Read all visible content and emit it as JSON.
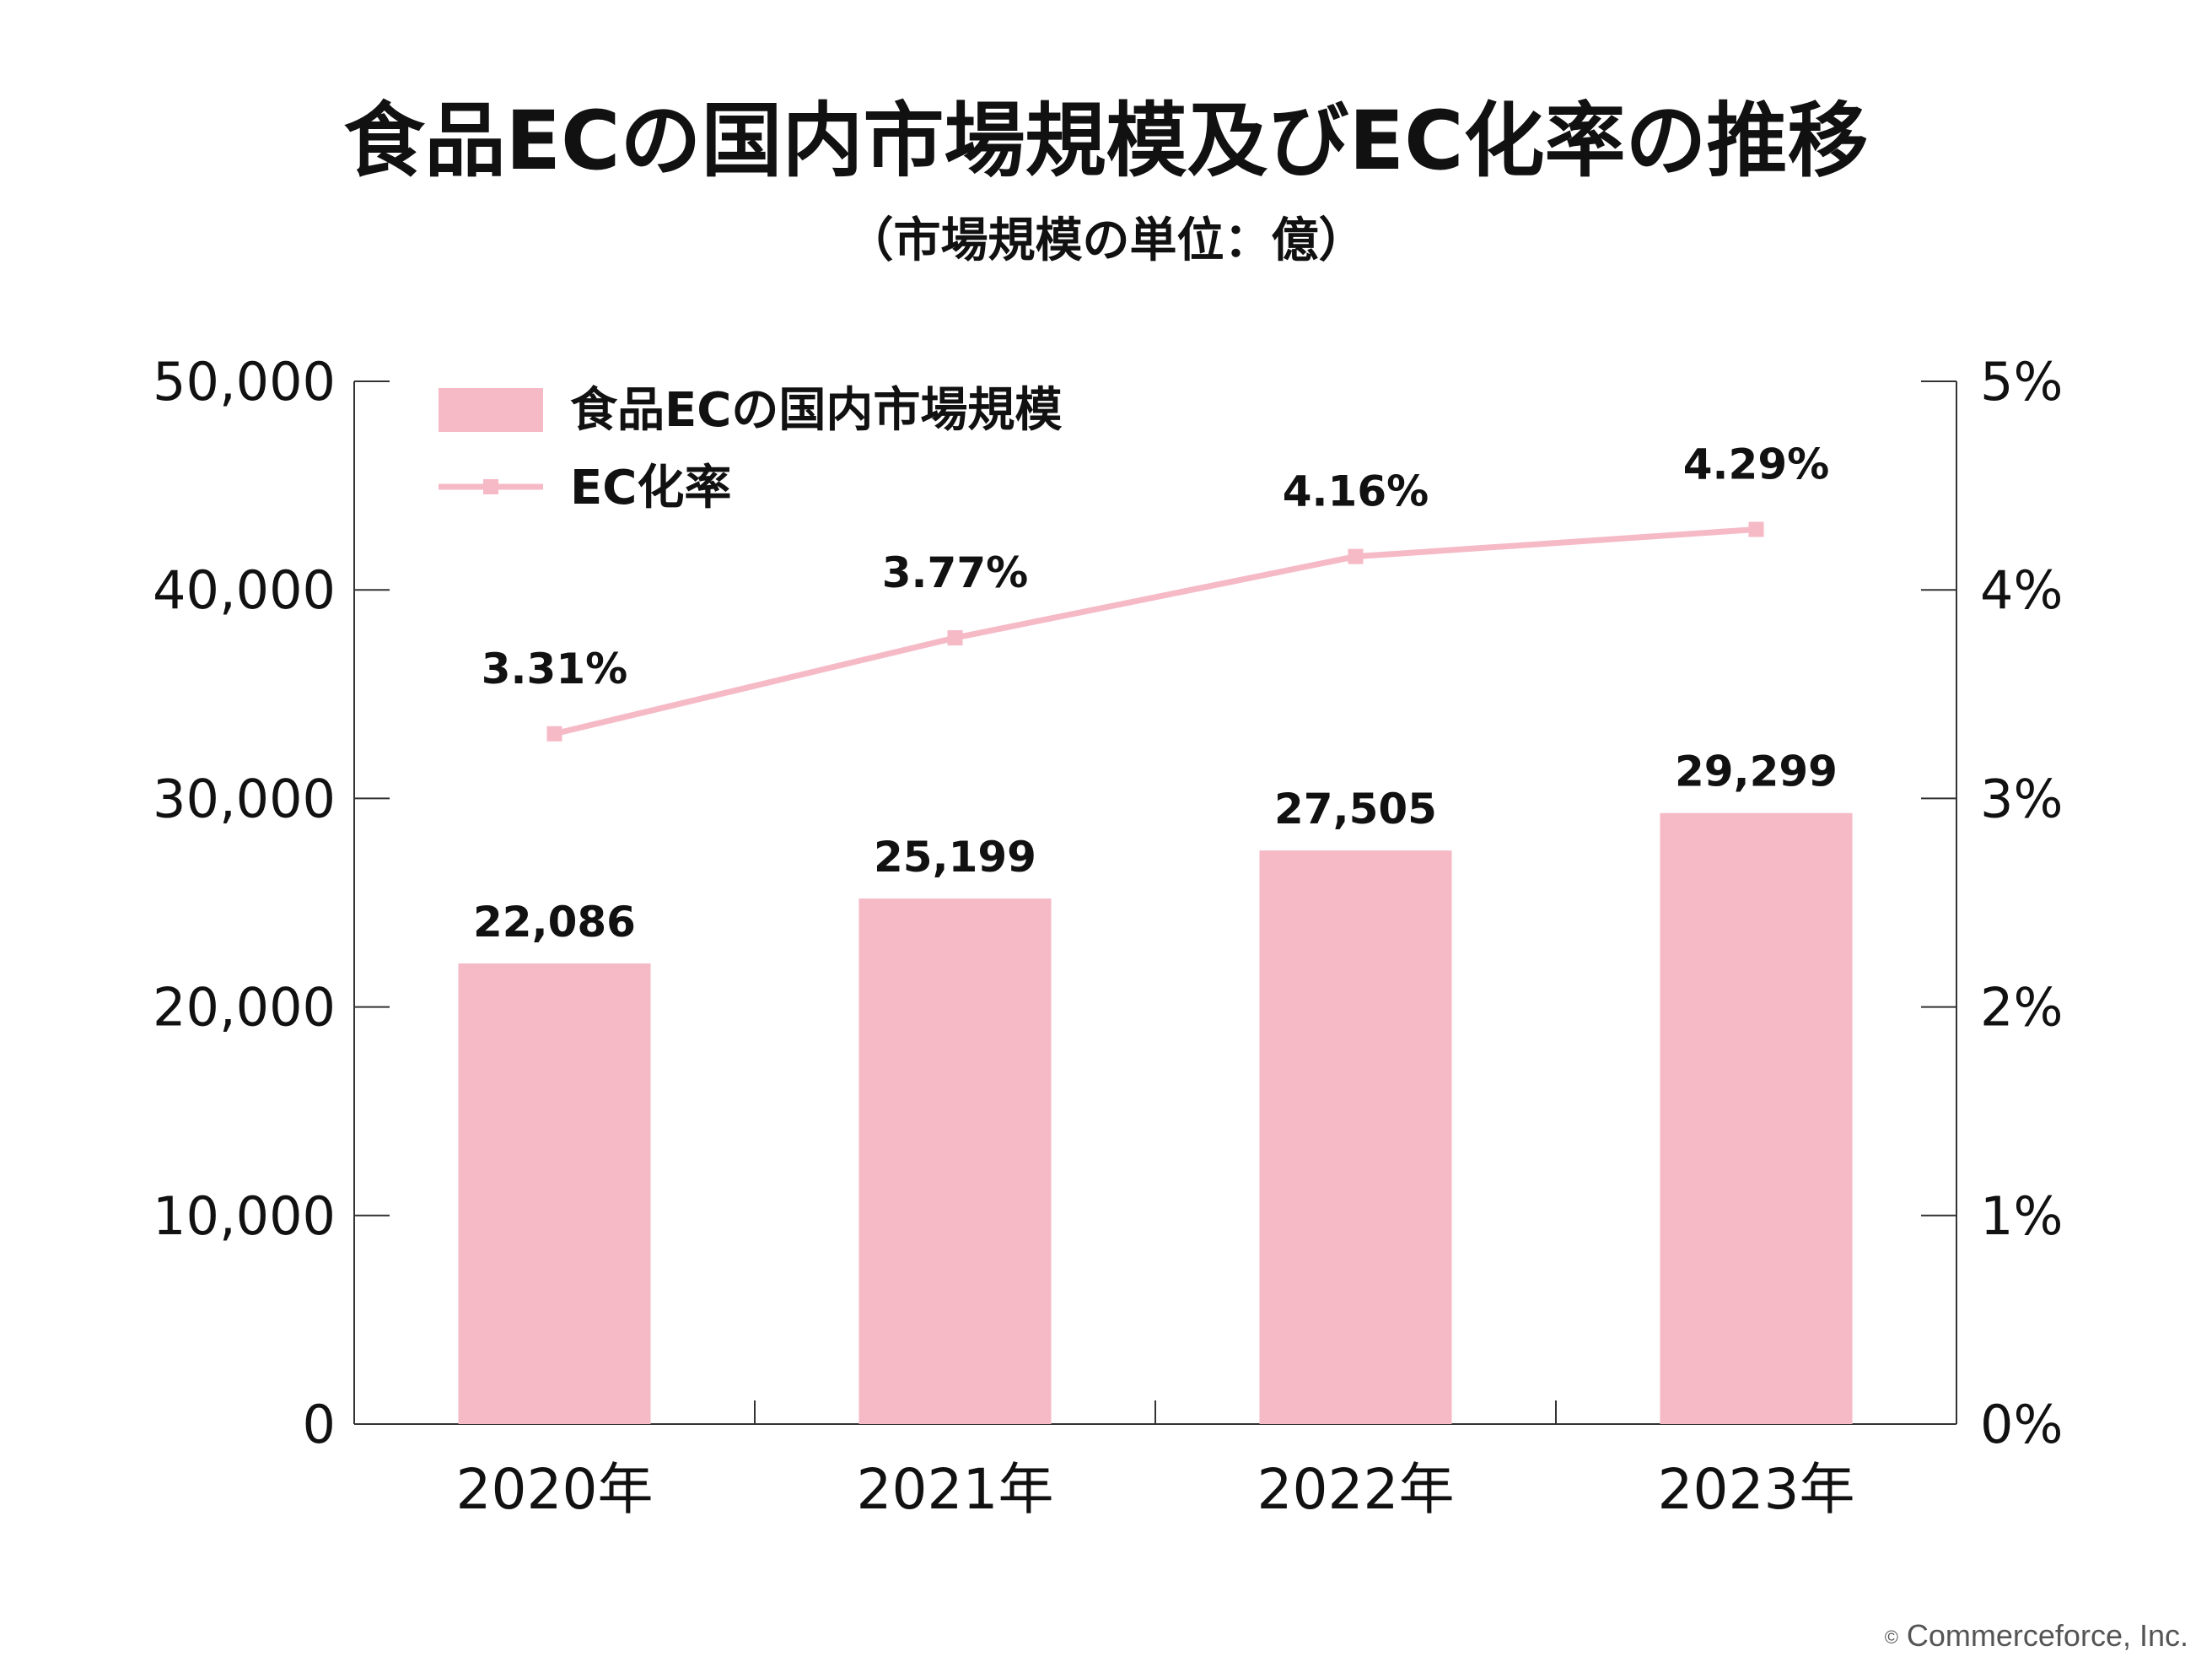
{
  "title": "食品ECの国内市場規模及びEC化率の推移",
  "subtitle": "（市場規模の単位：億）",
  "copyright": "Commerceforce, Inc.",
  "chart_data": {
    "type": "bar",
    "categories": [
      "2020年",
      "2021年",
      "2022年",
      "2023年"
    ],
    "series": [
      {
        "name": "食品ECの国内市場規模",
        "type": "bar",
        "axis": "left",
        "values": [
          22086,
          25199,
          27505,
          29299
        ],
        "labels": [
          "22,086",
          "25,199",
          "27,505",
          "29,299"
        ],
        "color": "#f5bac6"
      },
      {
        "name": "EC化率",
        "type": "line",
        "axis": "right",
        "values": [
          3.31,
          3.77,
          4.16,
          4.29
        ],
        "labels": [
          "3.31%",
          "3.77%",
          "4.16%",
          "4.29%"
        ],
        "color": "#f5bac6"
      }
    ],
    "ylim_left": [
      0,
      50000
    ],
    "ylim_right": [
      0,
      5
    ],
    "y_ticks_left": [
      "0",
      "10,000",
      "20,000",
      "30,000",
      "40,000",
      "50,000"
    ],
    "y_ticks_right": [
      "0%",
      "1%",
      "2%",
      "3%",
      "4%",
      "5%"
    ],
    "legend": "top-left",
    "grid": false
  }
}
